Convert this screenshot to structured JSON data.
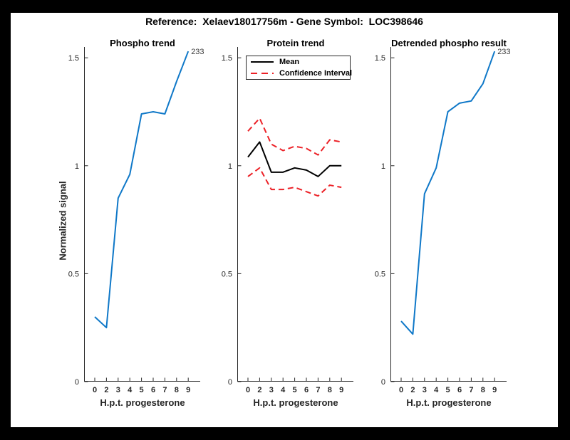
{
  "figure": {
    "title": "Reference:  Xelaev18017756m - Gene Symbol:  LOC398646",
    "background_color": "#000000",
    "canvas_color": "#ffffff"
  },
  "colors": {
    "phospho_line": "#0F78C8",
    "mean_line": "#000000",
    "ci_line": "#EC2127",
    "axis": "#262626"
  },
  "chart_data": [
    {
      "type": "line",
      "title": "Phospho trend",
      "xlabel": "H.p.t. progesterone",
      "ylabel": "Normalized signal",
      "x_tick_labels": [
        "0",
        "2",
        "3",
        "4",
        "5",
        "6",
        "7",
        "8",
        "9"
      ],
      "ylim": [
        0,
        1.55
      ],
      "ytick_values": [
        0,
        0.5,
        1,
        1.5
      ],
      "ytick_labels": [
        "0",
        "0.5",
        "1",
        "1.5"
      ],
      "grid": false,
      "end_label": "233",
      "series": [
        {
          "name": "phospho-signal",
          "color": "#0F78C8",
          "style": "solid",
          "values": [
            0.3,
            0.25,
            0.85,
            0.96,
            1.24,
            1.25,
            1.24,
            1.39,
            1.53
          ]
        }
      ]
    },
    {
      "type": "line",
      "title": "Protein trend",
      "xlabel": "H.p.t. progesterone",
      "ylabel": "",
      "x_tick_labels": [
        "0",
        "2",
        "3",
        "4",
        "5",
        "6",
        "7",
        "8",
        "9"
      ],
      "ylim": [
        0,
        1.55
      ],
      "ytick_values": [
        0,
        0.5,
        1,
        1.5
      ],
      "ytick_labels": [
        "0",
        "0.5",
        "1",
        "1.5"
      ],
      "grid": false,
      "legend_position": "top-left",
      "legend_entries": [
        {
          "label": "Mean",
          "style": "solid",
          "color": "#000000"
        },
        {
          "label": "Confidence Interval",
          "style": "dashed",
          "color": "#EC2127"
        }
      ],
      "series": [
        {
          "name": "confidence-interval-upper",
          "color": "#EC2127",
          "style": "dashed",
          "values": [
            1.16,
            1.22,
            1.1,
            1.07,
            1.09,
            1.08,
            1.05,
            1.12,
            1.11
          ]
        },
        {
          "name": "confidence-interval-lower",
          "color": "#EC2127",
          "style": "dashed",
          "values": [
            0.95,
            0.99,
            0.89,
            0.89,
            0.9,
            0.88,
            0.86,
            0.91,
            0.9
          ]
        },
        {
          "name": "mean",
          "color": "#000000",
          "style": "solid",
          "values": [
            1.04,
            1.11,
            0.97,
            0.97,
            0.99,
            0.98,
            0.95,
            1.0,
            1.0
          ]
        }
      ]
    },
    {
      "type": "line",
      "title": "Detrended phospho result",
      "xlabel": "H.p.t. progesterone",
      "ylabel": "",
      "x_tick_labels": [
        "0",
        "2",
        "3",
        "4",
        "5",
        "6",
        "7",
        "8",
        "9"
      ],
      "ylim": [
        0,
        1.55
      ],
      "ytick_values": [
        0,
        0.5,
        1,
        1.5
      ],
      "ytick_labels": [
        "0",
        "0.5",
        "1",
        "1.5"
      ],
      "grid": false,
      "end_label": "233",
      "series": [
        {
          "name": "detrended-phospho-signal",
          "color": "#0F78C8",
          "style": "solid",
          "values": [
            0.28,
            0.22,
            0.87,
            0.99,
            1.25,
            1.29,
            1.3,
            1.38,
            1.53
          ]
        }
      ]
    }
  ]
}
